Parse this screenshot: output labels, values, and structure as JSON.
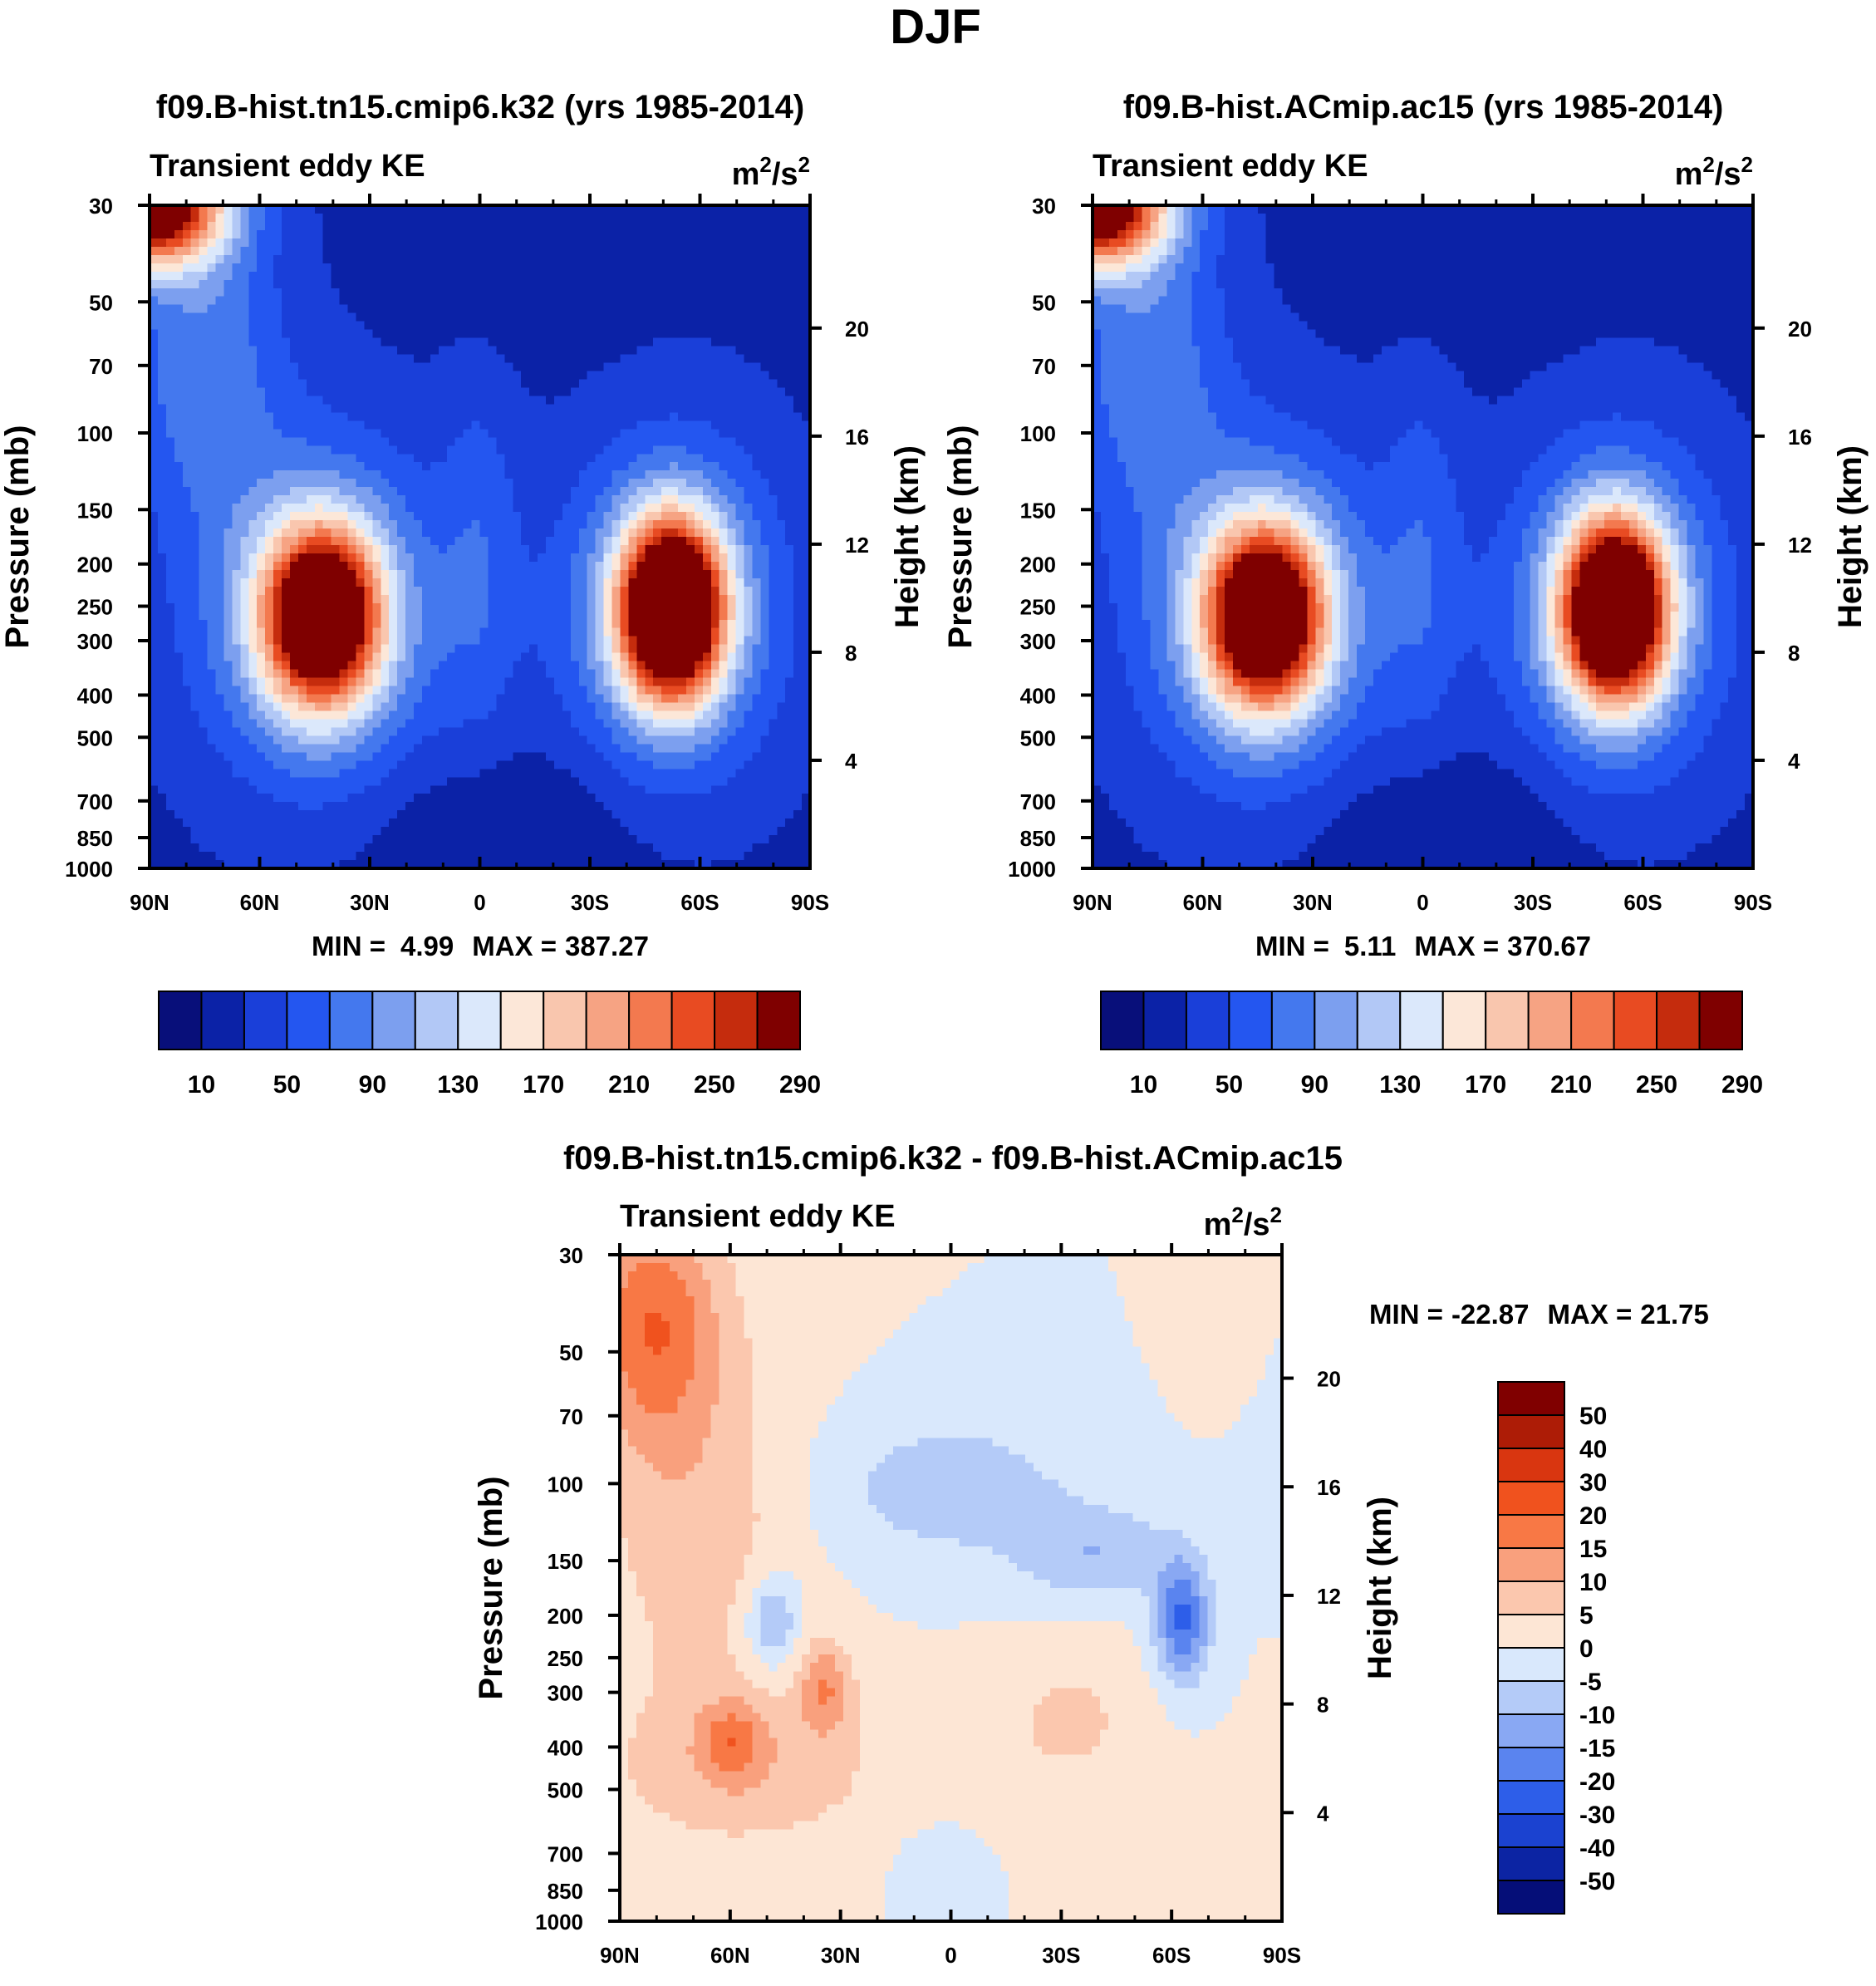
{
  "chart_data": {
    "type": "contour",
    "title": "DJF",
    "shared": {
      "x_ticks": [
        "90N",
        "60N",
        "30N",
        "0",
        "30S",
        "60S",
        "90S"
      ],
      "y_pressure_ticks": [
        "30",
        "50",
        "70",
        "100",
        "150",
        "200",
        "250",
        "300",
        "400",
        "500",
        "700",
        "850",
        "1000"
      ],
      "y_pressure_values": [
        30,
        50,
        70,
        100,
        150,
        200,
        250,
        300,
        400,
        500,
        700,
        850,
        1000
      ],
      "y_height_ticks": [
        "20",
        "16",
        "12",
        "8",
        "4"
      ],
      "xlabel": "",
      "ylabel_left": "Pressure (mb)",
      "ylabel_right": "Height (km)"
    },
    "panels": [
      {
        "id": "model1",
        "title": "f09.B-hist.tn15.cmip6.k32 (yrs 1985-2014)",
        "variable": "Transient eddy KE",
        "units_base": "m",
        "units_mid": "/s",
        "units_exp": "2",
        "min_label": "MIN =",
        "min_value": "4.99",
        "max_label": "MAX =",
        "max_value": "387.27",
        "colorbar_labels": [
          "10",
          "50",
          "90",
          "130",
          "170",
          "210",
          "250",
          "290"
        ],
        "features": [
          {
            "lat": -52,
            "p": 255,
            "value": 375
          },
          {
            "lat": 40,
            "p": 265,
            "value": 330
          },
          {
            "lat": 86,
            "p": 33,
            "value": 330
          }
        ]
      },
      {
        "id": "model2",
        "title": "f09.B-hist.ACmip.ac15 (yrs 1985-2014)",
        "variable": "Transient eddy KE",
        "units_base": "m",
        "units_mid": "/s",
        "units_exp": "2",
        "min_label": "MIN =",
        "min_value": "5.11",
        "max_label": "MAX =",
        "max_value": "370.67",
        "colorbar_labels": [
          "10",
          "50",
          "90",
          "130",
          "170",
          "210",
          "250",
          "290"
        ],
        "features": [
          {
            "lat": -52,
            "p": 255,
            "value": 365
          },
          {
            "lat": 40,
            "p": 265,
            "value": 320
          },
          {
            "lat": 86,
            "p": 33,
            "value": 330
          }
        ]
      },
      {
        "id": "difference",
        "title": "f09.B-hist.tn15.cmip6.k32 - f09.B-hist.ACmip.ac15",
        "variable": "Transient eddy KE",
        "units_base": "m",
        "units_mid": "/s",
        "units_exp": "2",
        "min_label": "MIN =",
        "min_value": "-22.87",
        "max_label": "MAX =",
        "max_value": "21.75",
        "colorbar_labels": [
          "50",
          "40",
          "30",
          "20",
          "15",
          "10",
          "5",
          "0",
          "-5",
          "-10",
          "-15",
          "-20",
          "-30",
          "-40",
          "-50"
        ],
        "features": [
          {
            "lat": 80,
            "p": 40,
            "value": 18
          },
          {
            "lat": -60,
            "p": 200,
            "value": -22
          },
          {
            "lat": 50,
            "p": 200,
            "value": -13
          },
          {
            "lat": 33,
            "p": 350,
            "value": 13
          },
          {
            "lat": 60,
            "p": 420,
            "value": 12
          }
        ]
      }
    ],
    "colors": {
      "seq_a": [
        "#080f7a",
        "#0b22a7",
        "#1a3fd9",
        "#2456f0",
        "#4478ee",
        "#7c9fef",
        "#b2c8f6",
        "#dbe8fb",
        "#fce7d8",
        "#f9c6ae",
        "#f6a383",
        "#f3794f",
        "#e84b22",
        "#c52c0d",
        "#7f0000"
      ],
      "div": [
        "#800000",
        "#ad1c06",
        "#d93610",
        "#f0521e",
        "#f87845",
        "#f9a07d",
        "#fbc7ae",
        "#fde6d5",
        "#d9e8fc",
        "#b4cbf8",
        "#89a8f3",
        "#5a84ef",
        "#2d5ee9",
        "#1b42d0",
        "#0c24a3",
        "#050e78"
      ]
    }
  }
}
